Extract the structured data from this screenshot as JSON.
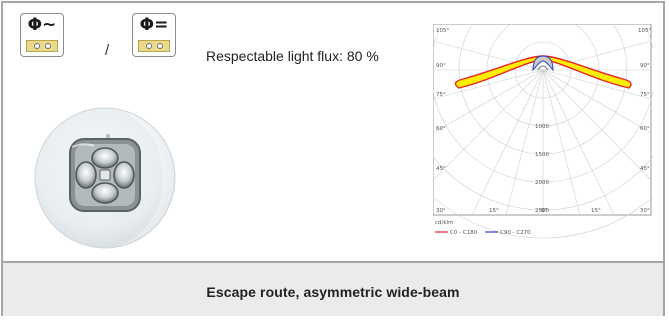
{
  "power_supply": {
    "ac_badge": {
      "label": "Φ~",
      "icon": "ac-power-socket-icon"
    },
    "separator": "/",
    "dc_badge": {
      "label": "Φ=",
      "icon": "dc-power-socket-icon"
    }
  },
  "flux": {
    "text": "Respectable light flux: 80 %"
  },
  "product_image": {
    "icon": "led-lens-optic-photo"
  },
  "polar_diagram": {
    "corner_labels": {
      "top_left": "105°",
      "top_right": "105°"
    },
    "angle_labels_left": [
      "90°",
      "75°",
      "60°",
      "45°"
    ],
    "angle_labels_right": [
      "90°",
      "75°",
      "60°",
      "45°"
    ],
    "bottom_angle_labels": [
      "30°",
      "15°",
      "0°",
      "15°",
      "30°"
    ],
    "radial_labels": [
      "1000",
      "1500",
      "2000",
      "2500"
    ],
    "unit_label": "cd/klm",
    "legend": [
      {
        "label": "C0 - C180",
        "color": "#e8262a"
      },
      {
        "label": "C90 - C270",
        "color": "#2c3fb8"
      }
    ],
    "fill_color": "#ffee00"
  },
  "footer": {
    "title": "Escape route, asymmetric wide-beam"
  }
}
